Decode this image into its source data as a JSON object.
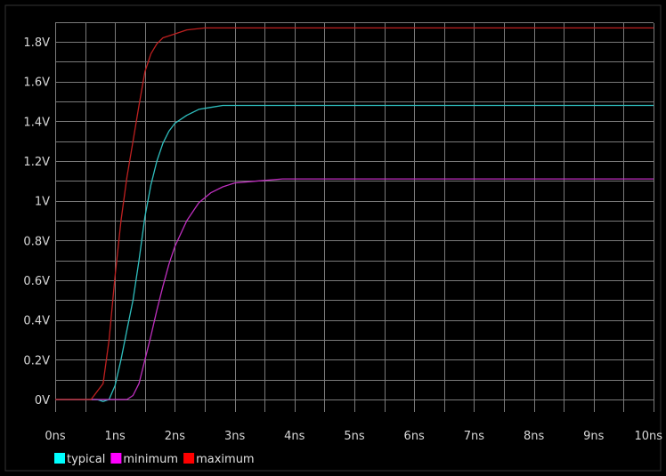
{
  "chart_data": {
    "type": "line",
    "title": "",
    "xlabel": "",
    "ylabel": "",
    "xlim": [
      0,
      10
    ],
    "ylim": [
      -0.05,
      1.9
    ],
    "grid": true,
    "legend_position": "bottom-left",
    "x_ticks": [
      {
        "value": 0,
        "label": "0ns"
      },
      {
        "value": 1,
        "label": "1ns"
      },
      {
        "value": 2,
        "label": "2ns"
      },
      {
        "value": 3,
        "label": "3ns"
      },
      {
        "value": 4,
        "label": "4ns"
      },
      {
        "value": 5,
        "label": "5ns"
      },
      {
        "value": 6,
        "label": "6ns"
      },
      {
        "value": 7,
        "label": "7ns"
      },
      {
        "value": 8,
        "label": "8ns"
      },
      {
        "value": 9,
        "label": "9ns"
      },
      {
        "value": 10,
        "label": "10ns"
      }
    ],
    "y_ticks": [
      {
        "value": 0,
        "label": "0V"
      },
      {
        "value": 0.2,
        "label": "0.2V"
      },
      {
        "value": 0.4,
        "label": "0.4V"
      },
      {
        "value": 0.6,
        "label": "0.6V"
      },
      {
        "value": 0.8,
        "label": "0.8V"
      },
      {
        "value": 1.0,
        "label": "1V"
      },
      {
        "value": 1.2,
        "label": "1.2V"
      },
      {
        "value": 1.4,
        "label": "1.4V"
      },
      {
        "value": 1.6,
        "label": "1.6V"
      },
      {
        "value": 1.8,
        "label": "1.8V"
      }
    ],
    "series": [
      {
        "name": "typical",
        "color": "#2fbfbf",
        "legend_color": "#00ffff",
        "points": [
          [
            0,
            0
          ],
          [
            0.7,
            0
          ],
          [
            0.8,
            -0.01
          ],
          [
            0.9,
            0.0
          ],
          [
            1.0,
            0.07
          ],
          [
            1.1,
            0.2
          ],
          [
            1.2,
            0.35
          ],
          [
            1.3,
            0.5
          ],
          [
            1.4,
            0.7
          ],
          [
            1.5,
            0.92
          ],
          [
            1.6,
            1.08
          ],
          [
            1.7,
            1.2
          ],
          [
            1.8,
            1.29
          ],
          [
            1.9,
            1.35
          ],
          [
            2.0,
            1.39
          ],
          [
            2.2,
            1.43
          ],
          [
            2.4,
            1.46
          ],
          [
            2.6,
            1.47
          ],
          [
            2.8,
            1.48
          ],
          [
            3.0,
            1.48
          ],
          [
            10,
            1.48
          ]
        ]
      },
      {
        "name": "minimum",
        "color": "#bf2fbf",
        "legend_color": "#ff00ff",
        "points": [
          [
            0,
            0
          ],
          [
            0.9,
            0
          ],
          [
            1.2,
            0.0
          ],
          [
            1.3,
            0.02
          ],
          [
            1.4,
            0.08
          ],
          [
            1.5,
            0.2
          ],
          [
            1.6,
            0.32
          ],
          [
            1.7,
            0.45
          ],
          [
            1.8,
            0.57
          ],
          [
            1.9,
            0.68
          ],
          [
            2.0,
            0.77
          ],
          [
            2.2,
            0.9
          ],
          [
            2.4,
            0.99
          ],
          [
            2.6,
            1.04
          ],
          [
            2.8,
            1.07
          ],
          [
            3.0,
            1.09
          ],
          [
            3.4,
            1.1
          ],
          [
            3.8,
            1.11
          ],
          [
            10,
            1.11
          ]
        ]
      },
      {
        "name": "maximum",
        "color": "#bf2020",
        "legend_color": "#ff0000",
        "points": [
          [
            0,
            0
          ],
          [
            0.6,
            0
          ],
          [
            0.8,
            0.08
          ],
          [
            0.9,
            0.3
          ],
          [
            1.0,
            0.62
          ],
          [
            1.1,
            0.9
          ],
          [
            1.2,
            1.12
          ],
          [
            1.3,
            1.3
          ],
          [
            1.4,
            1.48
          ],
          [
            1.5,
            1.65
          ],
          [
            1.6,
            1.74
          ],
          [
            1.7,
            1.79
          ],
          [
            1.8,
            1.82
          ],
          [
            2.0,
            1.84
          ],
          [
            2.2,
            1.86
          ],
          [
            2.5,
            1.87
          ],
          [
            10,
            1.87
          ]
        ]
      }
    ]
  }
}
